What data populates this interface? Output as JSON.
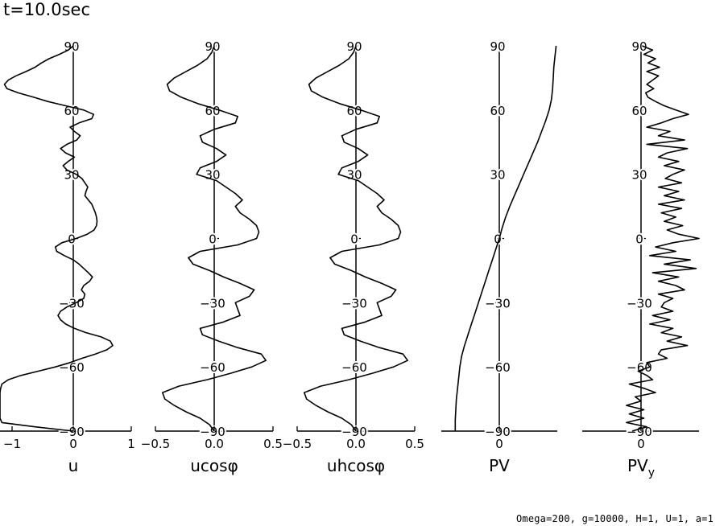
{
  "figure": {
    "time_label": "t=10.0sec",
    "parameters_label": "Omega=200, g=10000, H=1, U=1, a=1"
  },
  "chart_data": [
    {
      "type": "line",
      "xlabel": "u",
      "ylim": [
        -90,
        90
      ],
      "yticks": [
        "90",
        "60",
        "30",
        "0",
        "−30",
        "−60",
        "−90"
      ],
      "xlim": [
        -1.15,
        1
      ],
      "xticks": [
        "−1",
        "0",
        "1"
      ],
      "y": [
        90,
        88,
        86,
        84,
        82,
        80,
        78,
        76,
        74,
        72,
        70,
        68,
        66,
        64,
        62,
        60,
        58,
        56,
        54,
        52,
        50,
        48,
        46,
        44,
        42,
        40,
        38,
        36,
        34,
        32,
        30,
        28,
        26,
        24,
        22,
        20,
        18,
        16,
        14,
        12,
        10,
        8,
        6,
        4,
        2,
        0,
        -2,
        -4,
        -6,
        -8,
        -10,
        -12,
        -14,
        -16,
        -18,
        -20,
        -22,
        -24,
        -26,
        -28,
        -30,
        -32,
        -34,
        -36,
        -38,
        -40,
        -42,
        -44,
        -46,
        -48,
        -50,
        -52,
        -54,
        -56,
        -58,
        -60,
        -62,
        -64,
        -66,
        -68,
        -70,
        -72,
        -74,
        -76,
        -78,
        -80,
        -82,
        -84,
        -86,
        -88,
        -90
      ],
      "values": [
        0,
        -0.08,
        -0.22,
        -0.38,
        -0.5,
        -0.6,
        -0.74,
        -0.9,
        -1.02,
        -1.08,
        -1.04,
        -0.86,
        -0.62,
        -0.4,
        -0.12,
        0.18,
        0.35,
        0.32,
        0.1,
        -0.05,
        0.02,
        0.12,
        0.06,
        -0.1,
        -0.2,
        -0.12,
        0.02,
        -0.08,
        -0.16,
        -0.1,
        0.05,
        0.15,
        0.2,
        0.25,
        0.22,
        0.2,
        0.26,
        0.32,
        0.35,
        0.38,
        0.4,
        0.41,
        0.4,
        0.36,
        0.24,
        0.05,
        -0.18,
        -0.28,
        -0.26,
        -0.14,
        0.0,
        0.1,
        0.18,
        0.26,
        0.33,
        0.28,
        0.18,
        0.14,
        0.2,
        0.18,
        0.05,
        -0.1,
        -0.2,
        -0.24,
        -0.2,
        -0.12,
        0.02,
        0.22,
        0.48,
        0.64,
        0.68,
        0.58,
        0.38,
        0.15,
        -0.05,
        -0.28,
        -0.55,
        -0.82,
        -1.02,
        -1.12,
        -1.14,
        -1.15,
        -1.15,
        -1.15,
        -1.15,
        -1.15,
        -1.15,
        -1.15,
        -1.12,
        -0.6,
        0
      ]
    },
    {
      "type": "line",
      "xlabel": "ucosφ",
      "ylim": [
        -90,
        90
      ],
      "yticks": [
        "90",
        "60",
        "30",
        "0",
        "−30",
        "−60",
        "−90"
      ],
      "xlim": [
        -0.5,
        0.5
      ],
      "xticks": [
        "−0.5",
        "0.0",
        "0.5"
      ],
      "y": [
        90,
        87,
        84,
        81,
        78,
        75,
        72,
        69,
        66,
        63,
        60,
        57,
        54,
        51,
        48,
        45,
        42,
        39,
        36,
        33,
        30,
        27,
        24,
        21,
        18,
        15,
        12,
        9,
        6,
        3,
        0,
        -3,
        -6,
        -9,
        -12,
        -15,
        -18,
        -21,
        -24,
        -27,
        -30,
        -33,
        -36,
        -39,
        -42,
        -45,
        -48,
        -51,
        -54,
        -57,
        -60,
        -63,
        -66,
        -69,
        -72,
        -75,
        -78,
        -81,
        -84,
        -87,
        -90
      ],
      "values": [
        0,
        -0.02,
        -0.06,
        -0.14,
        -0.24,
        -0.34,
        -0.4,
        -0.38,
        -0.28,
        -0.14,
        0.04,
        0.2,
        0.18,
        0.0,
        -0.12,
        -0.1,
        0.02,
        0.1,
        0.02,
        -0.12,
        -0.15,
        0.02,
        0.1,
        0.18,
        0.24,
        0.18,
        0.22,
        0.3,
        0.36,
        0.38,
        0.36,
        0.2,
        -0.12,
        -0.22,
        -0.18,
        -0.04,
        0.08,
        0.22,
        0.34,
        0.3,
        0.18,
        0.2,
        0.22,
        0.08,
        -0.12,
        -0.1,
        0.04,
        0.2,
        0.4,
        0.44,
        0.32,
        0.14,
        -0.06,
        -0.3,
        -0.44,
        -0.42,
        -0.34,
        -0.24,
        -0.12,
        -0.04,
        0
      ]
    },
    {
      "type": "line",
      "xlabel": "uhcosφ",
      "ylim": [
        -90,
        90
      ],
      "yticks": [
        "90",
        "60",
        "30",
        "0",
        "−30",
        "−60",
        "−90"
      ],
      "xlim": [
        -0.5,
        0.5
      ],
      "xticks": [
        "−0.5",
        "0.0",
        "0.5"
      ],
      "y": [
        90,
        87,
        84,
        81,
        78,
        75,
        72,
        69,
        66,
        63,
        60,
        57,
        54,
        51,
        48,
        45,
        42,
        39,
        36,
        33,
        30,
        27,
        24,
        21,
        18,
        15,
        12,
        9,
        6,
        3,
        0,
        -3,
        -6,
        -9,
        -12,
        -15,
        -18,
        -21,
        -24,
        -27,
        -30,
        -33,
        -36,
        -39,
        -42,
        -45,
        -48,
        -51,
        -54,
        -57,
        -60,
        -63,
        -66,
        -69,
        -72,
        -75,
        -78,
        -81,
        -84,
        -87,
        -90
      ],
      "values": [
        0,
        -0.02,
        -0.06,
        -0.14,
        -0.24,
        -0.34,
        -0.4,
        -0.38,
        -0.28,
        -0.14,
        0.04,
        0.2,
        0.18,
        0.0,
        -0.12,
        -0.1,
        0.02,
        0.1,
        0.02,
        -0.12,
        -0.15,
        0.02,
        0.1,
        0.18,
        0.24,
        0.18,
        0.22,
        0.3,
        0.36,
        0.38,
        0.36,
        0.2,
        -0.12,
        -0.22,
        -0.18,
        -0.04,
        0.08,
        0.22,
        0.34,
        0.3,
        0.18,
        0.2,
        0.22,
        0.08,
        -0.12,
        -0.1,
        0.04,
        0.2,
        0.4,
        0.44,
        0.32,
        0.14,
        -0.06,
        -0.3,
        -0.44,
        -0.42,
        -0.34,
        -0.24,
        -0.12,
        -0.04,
        0
      ]
    },
    {
      "type": "line",
      "xlabel": "PV",
      "ylim": [
        -90,
        90
      ],
      "yticks": [
        "90",
        "60",
        "30",
        "0",
        "−30",
        "−60",
        "−90"
      ],
      "xlim": [
        -1,
        1
      ],
      "xticks": [
        "0"
      ],
      "y": [
        90,
        85,
        80,
        75,
        70,
        65,
        60,
        55,
        50,
        45,
        40,
        35,
        30,
        25,
        20,
        15,
        10,
        5,
        0,
        -5,
        -10,
        -15,
        -20,
        -25,
        -30,
        -35,
        -40,
        -45,
        -50,
        -55,
        -60,
        -65,
        -70,
        -75,
        -80,
        -85,
        -90
      ],
      "values": [
        0.98,
        0.96,
        0.94,
        0.93,
        0.92,
        0.9,
        0.86,
        0.8,
        0.73,
        0.66,
        0.58,
        0.5,
        0.42,
        0.34,
        0.26,
        0.18,
        0.11,
        0.05,
        0.0,
        -0.06,
        -0.12,
        -0.18,
        -0.24,
        -0.3,
        -0.36,
        -0.42,
        -0.48,
        -0.54,
        -0.6,
        -0.65,
        -0.68,
        -0.7,
        -0.72,
        -0.74,
        -0.75,
        -0.76,
        -0.76
      ]
    },
    {
      "type": "line",
      "xlabel": "PV",
      "xlabel_subscript": "y",
      "ylim": [
        -90,
        90
      ],
      "yticks": [
        "90",
        "60",
        "30",
        "0",
        "−30",
        "−60",
        "−90"
      ],
      "xlim": [
        -1,
        1.0
      ],
      "xticks": [
        "0"
      ],
      "y": [
        90,
        88,
        86,
        84,
        82,
        80,
        78,
        76,
        74,
        72,
        70,
        68,
        66,
        64,
        62,
        60,
        58,
        56,
        54,
        52,
        50,
        48,
        46,
        44,
        42,
        40,
        38,
        36,
        34,
        32,
        30,
        28,
        26,
        24,
        22,
        20,
        18,
        16,
        14,
        12,
        10,
        8,
        6,
        4,
        2,
        0,
        -2,
        -4,
        -6,
        -8,
        -10,
        -12,
        -14,
        -16,
        -18,
        -20,
        -22,
        -24,
        -26,
        -28,
        -30,
        -32,
        -34,
        -36,
        -38,
        -40,
        -42,
        -44,
        -46,
        -48,
        -50,
        -52,
        -54,
        -56,
        -58,
        -60,
        -62,
        -64,
        -66,
        -68,
        -70,
        -72,
        -74,
        -76,
        -78,
        -80,
        -82,
        -84,
        -86,
        -88,
        -90
      ],
      "values": [
        0.02,
        0.2,
        0.05,
        0.25,
        0.12,
        0.32,
        0.1,
        0.3,
        0.2,
        0.1,
        0.22,
        0.08,
        0.12,
        0.25,
        0.4,
        0.6,
        0.82,
        0.55,
        0.35,
        0.1,
        0.5,
        0.3,
        0.75,
        0.1,
        0.8,
        0.45,
        0.3,
        0.65,
        0.4,
        0.75,
        0.55,
        0.42,
        0.7,
        0.3,
        0.65,
        0.4,
        0.75,
        0.3,
        0.7,
        0.35,
        0.6,
        0.4,
        0.72,
        0.45,
        0.65,
        1.0,
        0.55,
        0.25,
        0.6,
        0.15,
        0.85,
        0.4,
        0.95,
        0.2,
        0.65,
        0.3,
        0.6,
        0.75,
        0.3,
        0.55,
        0.4,
        0.35,
        0.55,
        0.2,
        0.5,
        0.15,
        0.55,
        0.35,
        0.7,
        0.45,
        0.8,
        0.35,
        0.3,
        0.45,
        0.1,
        0.15,
        -0.05,
        0.1,
        0.2,
        -0.2,
        0.05,
        0.25,
        -0.1,
        0.0,
        -0.25,
        0.05,
        -0.2,
        0.05,
        -0.25,
        0.1,
        -0.15
      ]
    }
  ]
}
